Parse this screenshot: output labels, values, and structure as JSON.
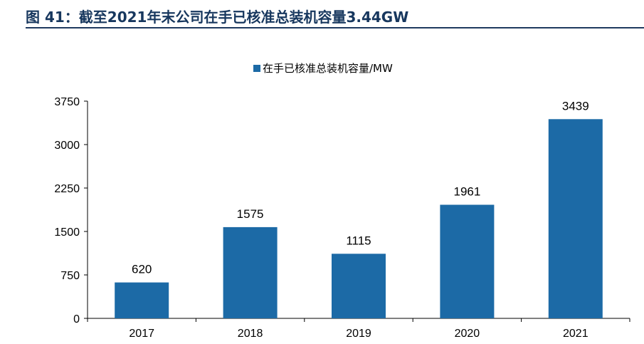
{
  "figure": {
    "title": "图 41：截至2021年末公司在手已核准总装机容量3.44GW"
  },
  "chart_data": {
    "type": "bar",
    "title": "",
    "categories": [
      "2017",
      "2018",
      "2019",
      "2020",
      "2021"
    ],
    "series": [
      {
        "name": "在手已核准总装机容量/MW",
        "values": [
          620,
          1575,
          1115,
          1961,
          3439
        ],
        "color": "#1c6aa6"
      }
    ],
    "yticks": [
      0,
      750,
      1500,
      2250,
      3000,
      3750
    ],
    "ylim": [
      0,
      3750
    ],
    "xlabel": "",
    "ylabel": "",
    "grid": false,
    "legend": "top-center"
  }
}
